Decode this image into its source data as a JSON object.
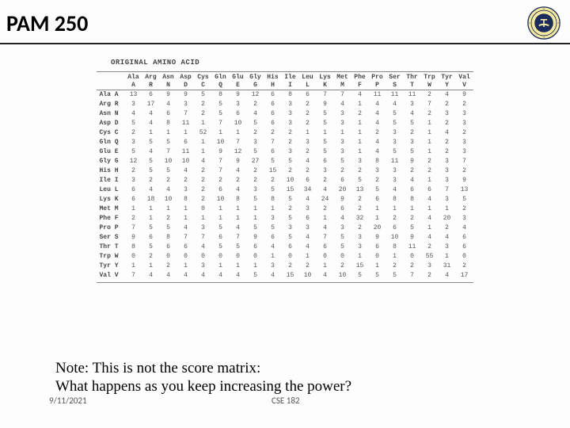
{
  "header": {
    "title": "PAM 250"
  },
  "matrix": {
    "heading": "ORIGINAL AMINO ACID",
    "col_names": [
      "Ala",
      "Arg",
      "Asn",
      "Asp",
      "Cys",
      "Gln",
      "Glu",
      "Gly",
      "His",
      "Ile",
      "Leu",
      "Lys",
      "Met",
      "Phe",
      "Pro",
      "Ser",
      "Thr",
      "Trp",
      "Tyr",
      "Val"
    ],
    "col_codes": [
      "A",
      "R",
      "N",
      "D",
      "C",
      "Q",
      "E",
      "G",
      "H",
      "I",
      "L",
      "K",
      "M",
      "F",
      "P",
      "S",
      "T",
      "W",
      "Y",
      "V"
    ],
    "rows": [
      {
        "label": "Ala A",
        "v": [
          13,
          6,
          9,
          9,
          5,
          8,
          9,
          12,
          6,
          8,
          6,
          7,
          7,
          4,
          11,
          11,
          11,
          2,
          4,
          9
        ]
      },
      {
        "label": "Arg R",
        "v": [
          3,
          17,
          4,
          3,
          2,
          5,
          3,
          2,
          6,
          3,
          2,
          9,
          4,
          1,
          4,
          4,
          3,
          7,
          2,
          2
        ]
      },
      {
        "label": "Asn N",
        "v": [
          4,
          4,
          6,
          7,
          2,
          5,
          6,
          4,
          6,
          3,
          2,
          5,
          3,
          2,
          4,
          5,
          4,
          2,
          3,
          3
        ]
      },
      {
        "label": "Asp D",
        "v": [
          5,
          4,
          8,
          11,
          1,
          7,
          10,
          5,
          6,
          3,
          2,
          5,
          3,
          1,
          4,
          5,
          5,
          1,
          2,
          3
        ]
      },
      {
        "label": "Cys C",
        "v": [
          2,
          1,
          1,
          1,
          52,
          1,
          1,
          2,
          2,
          2,
          1,
          1,
          1,
          1,
          2,
          3,
          2,
          1,
          4,
          2
        ]
      },
      {
        "label": "Gln Q",
        "v": [
          3,
          5,
          5,
          6,
          1,
          10,
          7,
          3,
          7,
          2,
          3,
          5,
          3,
          1,
          4,
          3,
          3,
          1,
          2,
          3
        ]
      },
      {
        "label": "Glu E",
        "v": [
          5,
          4,
          7,
          11,
          1,
          9,
          12,
          5,
          6,
          3,
          2,
          5,
          3,
          1,
          4,
          5,
          5,
          1,
          2,
          3
        ]
      },
      {
        "label": "Gly G",
        "v": [
          12,
          5,
          10,
          10,
          4,
          7,
          9,
          27,
          5,
          5,
          4,
          6,
          5,
          3,
          8,
          11,
          9,
          2,
          3,
          7
        ]
      },
      {
        "label": "His H",
        "v": [
          2,
          5,
          5,
          4,
          2,
          7,
          4,
          2,
          15,
          2,
          2,
          3,
          2,
          2,
          3,
          3,
          2,
          2,
          3,
          2
        ]
      },
      {
        "label": "Ile I",
        "v": [
          3,
          2,
          2,
          2,
          2,
          2,
          2,
          2,
          2,
          10,
          6,
          2,
          6,
          5,
          2,
          3,
          4,
          1,
          3,
          9
        ]
      },
      {
        "label": "Leu L",
        "v": [
          6,
          4,
          4,
          3,
          2,
          6,
          4,
          3,
          5,
          15,
          34,
          4,
          20,
          13,
          5,
          4,
          6,
          6,
          7,
          13
        ]
      },
      {
        "label": "Lys K",
        "v": [
          6,
          18,
          10,
          8,
          2,
          10,
          8,
          5,
          8,
          5,
          4,
          24,
          9,
          2,
          6,
          8,
          8,
          4,
          3,
          5
        ]
      },
      {
        "label": "Met M",
        "v": [
          1,
          1,
          1,
          1,
          0,
          1,
          1,
          1,
          1,
          2,
          3,
          2,
          6,
          2,
          1,
          1,
          1,
          1,
          1,
          2
        ]
      },
      {
        "label": "Phe F",
        "v": [
          2,
          1,
          2,
          1,
          1,
          1,
          1,
          1,
          3,
          5,
          6,
          1,
          4,
          32,
          1,
          2,
          2,
          4,
          20,
          3
        ]
      },
      {
        "label": "Pro P",
        "v": [
          7,
          5,
          5,
          4,
          3,
          5,
          4,
          5,
          5,
          3,
          3,
          4,
          3,
          2,
          20,
          6,
          5,
          1,
          2,
          4
        ]
      },
      {
        "label": "Ser S",
        "v": [
          9,
          6,
          8,
          7,
          7,
          6,
          7,
          9,
          6,
          5,
          4,
          7,
          5,
          3,
          9,
          10,
          9,
          4,
          4,
          6
        ]
      },
      {
        "label": "Thr T",
        "v": [
          8,
          5,
          6,
          6,
          4,
          5,
          5,
          6,
          4,
          6,
          4,
          6,
          5,
          3,
          6,
          8,
          11,
          2,
          3,
          6
        ]
      },
      {
        "label": "Trp W",
        "v": [
          0,
          2,
          0,
          0,
          0,
          0,
          0,
          0,
          1,
          0,
          1,
          0,
          0,
          1,
          0,
          1,
          0,
          55,
          1,
          0
        ]
      },
      {
        "label": "Tyr Y",
        "v": [
          1,
          1,
          2,
          1,
          3,
          1,
          1,
          1,
          3,
          2,
          2,
          1,
          2,
          15,
          1,
          2,
          2,
          3,
          31,
          2
        ]
      },
      {
        "label": "Val V",
        "v": [
          7,
          4,
          4,
          4,
          4,
          4,
          4,
          5,
          4,
          15,
          10,
          4,
          10,
          5,
          5,
          5,
          7,
          2,
          4,
          17
        ]
      }
    ]
  },
  "note": {
    "line1": "Note: This is not the score matrix:",
    "line2": "What happens as you keep increasing the power?"
  },
  "footer": {
    "date": "9/11/2021",
    "course": "CSE 182"
  }
}
